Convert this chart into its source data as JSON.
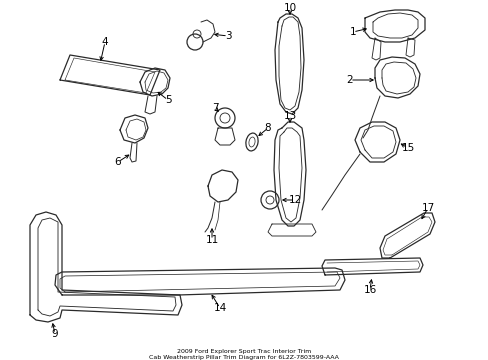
{
  "background_color": "#ffffff",
  "figure_width": 4.89,
  "figure_height": 3.6,
  "dpi": 100,
  "line_color": "#2a2a2a",
  "line_width": 0.9,
  "font_size": 7.5,
  "title_line1": "2009 Ford Explorer Sport Trac Interior Trim",
  "title_line2": "Cab Weatherstrip Pillar Trim Diagram for 6L2Z-7803599-AAA"
}
